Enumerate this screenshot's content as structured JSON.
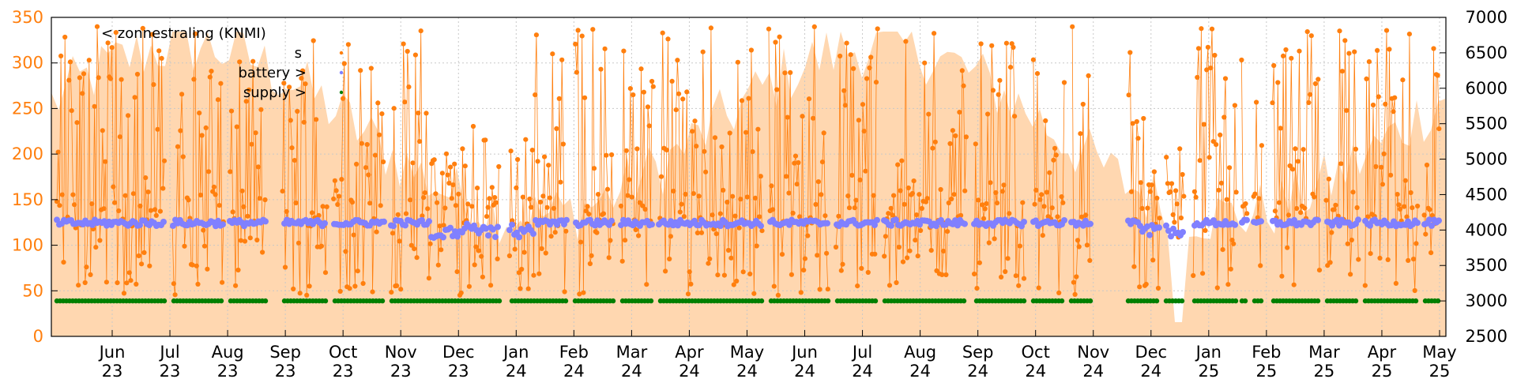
{
  "chart_data": {
    "type": "scatter",
    "grid": true,
    "legend_position": "top-left",
    "y_left": {
      "range": [
        0,
        350
      ],
      "ticks": [
        "0",
        "50",
        "100",
        "150",
        "200",
        "250",
        "300",
        "350"
      ],
      "color": "#ff7f0e"
    },
    "y_right": {
      "range": [
        2500,
        7000
      ],
      "ticks": [
        "2500",
        "3000",
        "3500",
        "4000",
        "4500",
        "5000",
        "5500",
        "6000",
        "6500",
        "7000"
      ]
    },
    "x_ticks": [
      {
        "month": "Jun",
        "year": "23"
      },
      {
        "month": "Jul",
        "year": "23"
      },
      {
        "month": "Aug",
        "year": "23"
      },
      {
        "month": "Sep",
        "year": "23"
      },
      {
        "month": "Oct",
        "year": "23"
      },
      {
        "month": "Nov",
        "year": "23"
      },
      {
        "month": "Dec",
        "year": "23"
      },
      {
        "month": "Jan",
        "year": "24"
      },
      {
        "month": "Feb",
        "year": "24"
      },
      {
        "month": "Mar",
        "year": "24"
      },
      {
        "month": "Apr",
        "year": "24"
      },
      {
        "month": "May",
        "year": "24"
      },
      {
        "month": "Jun",
        "year": "24"
      },
      {
        "month": "Jul",
        "year": "24"
      },
      {
        "month": "Aug",
        "year": "24"
      },
      {
        "month": "Sep",
        "year": "24"
      },
      {
        "month": "Oct",
        "year": "24"
      },
      {
        "month": "Nov",
        "year": "24"
      },
      {
        "month": "Dec",
        "year": "24"
      },
      {
        "month": "Jan",
        "year": "25"
      },
      {
        "month": "Feb",
        "year": "25"
      },
      {
        "month": "Mar",
        "year": "25"
      },
      {
        "month": "Apr",
        "year": "25"
      },
      {
        "month": "May",
        "year": "25"
      }
    ],
    "series": [
      {
        "name": "< zonnestraling (KNMI)",
        "style": "area",
        "color": "#ffd7b0"
      },
      {
        "name": "s",
        "style": "points-line",
        "color": "#ff7f0e",
        "low": 40,
        "high": 330
      },
      {
        "name": "battery >",
        "style": "points",
        "color": "#8080ff",
        "level": 4100
      },
      {
        "name": "supply >",
        "style": "points",
        "color": "#007f00",
        "level": 3000
      }
    ]
  }
}
